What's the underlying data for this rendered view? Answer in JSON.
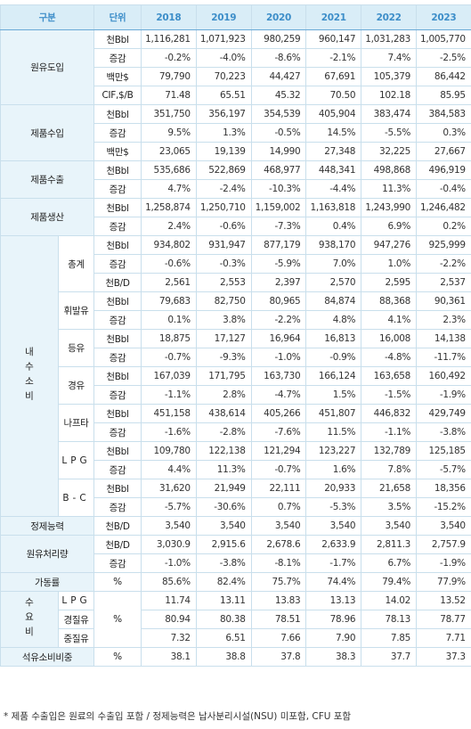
{
  "header": {
    "label": "구분",
    "unit": "단위",
    "years": [
      "2018",
      "2019",
      "2020",
      "2021",
      "2022",
      "2023"
    ]
  },
  "groups": [
    {
      "label": "원유도입",
      "rows": [
        {
          "unit": "천Bbl",
          "values": [
            "1,116,281",
            "1,071,923",
            "980,259",
            "960,147",
            "1,031,283",
            "1,005,770"
          ]
        },
        {
          "unit": "증감",
          "values": [
            "-0.2%",
            "-4.0%",
            "-8.6%",
            "-2.1%",
            "7.4%",
            "-2.5%"
          ]
        },
        {
          "unit": "백만$",
          "values": [
            "79,790",
            "70,223",
            "44,427",
            "67,691",
            "105,379",
            "86,442"
          ]
        },
        {
          "unit": "CIF,$/B",
          "values": [
            "71.48",
            "65.51",
            "45.32",
            "70.50",
            "102.18",
            "85.95"
          ]
        }
      ]
    },
    {
      "label": "제품수입",
      "rows": [
        {
          "unit": "천Bbl",
          "values": [
            "351,750",
            "356,197",
            "354,539",
            "405,904",
            "383,474",
            "384,583"
          ]
        },
        {
          "unit": "증감",
          "values": [
            "9.5%",
            "1.3%",
            "-0.5%",
            "14.5%",
            "-5.5%",
            "0.3%"
          ]
        },
        {
          "unit": "백만$",
          "values": [
            "23,065",
            "19,139",
            "14,990",
            "27,348",
            "32,225",
            "27,667"
          ]
        }
      ]
    },
    {
      "label": "제품수출",
      "rows": [
        {
          "unit": "천Bbl",
          "values": [
            "535,686",
            "522,869",
            "468,977",
            "448,341",
            "498,868",
            "496,919"
          ]
        },
        {
          "unit": "증감",
          "values": [
            "4.7%",
            "-2.4%",
            "-10.3%",
            "-4.4%",
            "11.3%",
            "-0.4%"
          ]
        }
      ]
    },
    {
      "label": "제품생산",
      "rows": [
        {
          "unit": "천Bbl",
          "values": [
            "1,258,874",
            "1,250,710",
            "1,159,002",
            "1,163,818",
            "1,243,990",
            "1,246,482"
          ]
        },
        {
          "unit": "증감",
          "values": [
            "2.4%",
            "-0.6%",
            "-7.3%",
            "0.4%",
            "6.9%",
            "0.2%"
          ]
        }
      ]
    },
    {
      "label": "내수소비",
      "subgroups": [
        {
          "label": "총계",
          "rows": [
            {
              "unit": "천Bbl",
              "values": [
                "934,802",
                "931,947",
                "877,179",
                "938,170",
                "947,276",
                "925,999"
              ]
            },
            {
              "unit": "증감",
              "values": [
                "-0.6%",
                "-0.3%",
                "-5.9%",
                "7.0%",
                "1.0%",
                "-2.2%"
              ]
            },
            {
              "unit": "천B/D",
              "values": [
                "2,561",
                "2,553",
                "2,397",
                "2,570",
                "2,595",
                "2,537"
              ]
            }
          ]
        },
        {
          "label": "휘발유",
          "rows": [
            {
              "unit": "천Bbl",
              "values": [
                "79,683",
                "82,750",
                "80,965",
                "84,874",
                "88,368",
                "90,361"
              ]
            },
            {
              "unit": "증감",
              "values": [
                "0.1%",
                "3.8%",
                "-2.2%",
                "4.8%",
                "4.1%",
                "2.3%"
              ]
            }
          ]
        },
        {
          "label": "등유",
          "rows": [
            {
              "unit": "천Bbl",
              "values": [
                "18,875",
                "17,127",
                "16,964",
                "16,813",
                "16,008",
                "14,138"
              ]
            },
            {
              "unit": "증감",
              "values": [
                "-0.7%",
                "-9.3%",
                "-1.0%",
                "-0.9%",
                "-4.8%",
                "-11.7%"
              ]
            }
          ]
        },
        {
          "label": "경유",
          "rows": [
            {
              "unit": "천Bbl",
              "values": [
                "167,039",
                "171,795",
                "163,730",
                "166,124",
                "163,658",
                "160,492"
              ]
            },
            {
              "unit": "증감",
              "values": [
                "-1.1%",
                "2.8%",
                "-4.7%",
                "1.5%",
                "-1.5%",
                "-1.9%"
              ]
            }
          ]
        },
        {
          "label": "나프타",
          "rows": [
            {
              "unit": "천Bbl",
              "values": [
                "451,158",
                "438,614",
                "405,266",
                "451,807",
                "446,832",
                "429,749"
              ]
            },
            {
              "unit": "증감",
              "values": [
                "-1.6%",
                "-2.8%",
                "-7.6%",
                "11.5%",
                "-1.1%",
                "-3.8%"
              ]
            }
          ]
        },
        {
          "label": "LPG",
          "rows": [
            {
              "unit": "천Bbl",
              "values": [
                "109,780",
                "122,138",
                "121,294",
                "123,227",
                "132,789",
                "125,185"
              ]
            },
            {
              "unit": "증감",
              "values": [
                "4.4%",
                "11.3%",
                "-0.7%",
                "1.6%",
                "7.8%",
                "-5.7%"
              ]
            }
          ]
        },
        {
          "label": "B-C",
          "rows": [
            {
              "unit": "천Bbl",
              "values": [
                "31,620",
                "21,949",
                "22,111",
                "20,933",
                "21,658",
                "18,356"
              ]
            },
            {
              "unit": "증감",
              "values": [
                "-5.7%",
                "-30.6%",
                "0.7%",
                "-5.3%",
                "3.5%",
                "-15.2%"
              ]
            }
          ]
        }
      ]
    },
    {
      "label": "정제능력",
      "rows": [
        {
          "unit": "천B/D",
          "values": [
            "3,540",
            "3,540",
            "3,540",
            "3,540",
            "3,540",
            "3,540"
          ]
        }
      ]
    },
    {
      "label": "원유처리량",
      "rows": [
        {
          "unit": "천B/D",
          "values": [
            "3,030.9",
            "2,915.6",
            "2,678.6",
            "2,633.9",
            "2,811.3",
            "2,757.9"
          ]
        },
        {
          "unit": "증감",
          "values": [
            "-1.0%",
            "-3.8%",
            "-8.1%",
            "-1.7%",
            "6.7%",
            "-1.9%"
          ]
        }
      ]
    },
    {
      "label": "가동률",
      "rows": [
        {
          "unit": "%",
          "values": [
            "85.6%",
            "82.4%",
            "75.7%",
            "74.4%",
            "79.4%",
            "77.9%"
          ]
        }
      ]
    },
    {
      "label": "수요비",
      "unit": "%",
      "subgroups": [
        {
          "label": "LPG",
          "values": [
            "11.74",
            "13.11",
            "13.83",
            "13.13",
            "14.02",
            "13.52"
          ]
        },
        {
          "label": "경질유",
          "values": [
            "80.94",
            "80.38",
            "78.51",
            "78.96",
            "78.13",
            "78.77"
          ]
        },
        {
          "label": "중질유",
          "values": [
            "7.32",
            "6.51",
            "7.66",
            "7.90",
            "7.85",
            "7.71"
          ]
        }
      ]
    },
    {
      "label": "석유소비비중",
      "rows": [
        {
          "unit": "%",
          "values": [
            "38.1",
            "38.8",
            "37.8",
            "38.3",
            "37.7",
            "37.3"
          ]
        }
      ]
    }
  ],
  "footnote": "* 제품 수출입은 원료의 수출입 포함 / 정제능력은 납사분리시설(NSU) 미포함, CFU 포함"
}
